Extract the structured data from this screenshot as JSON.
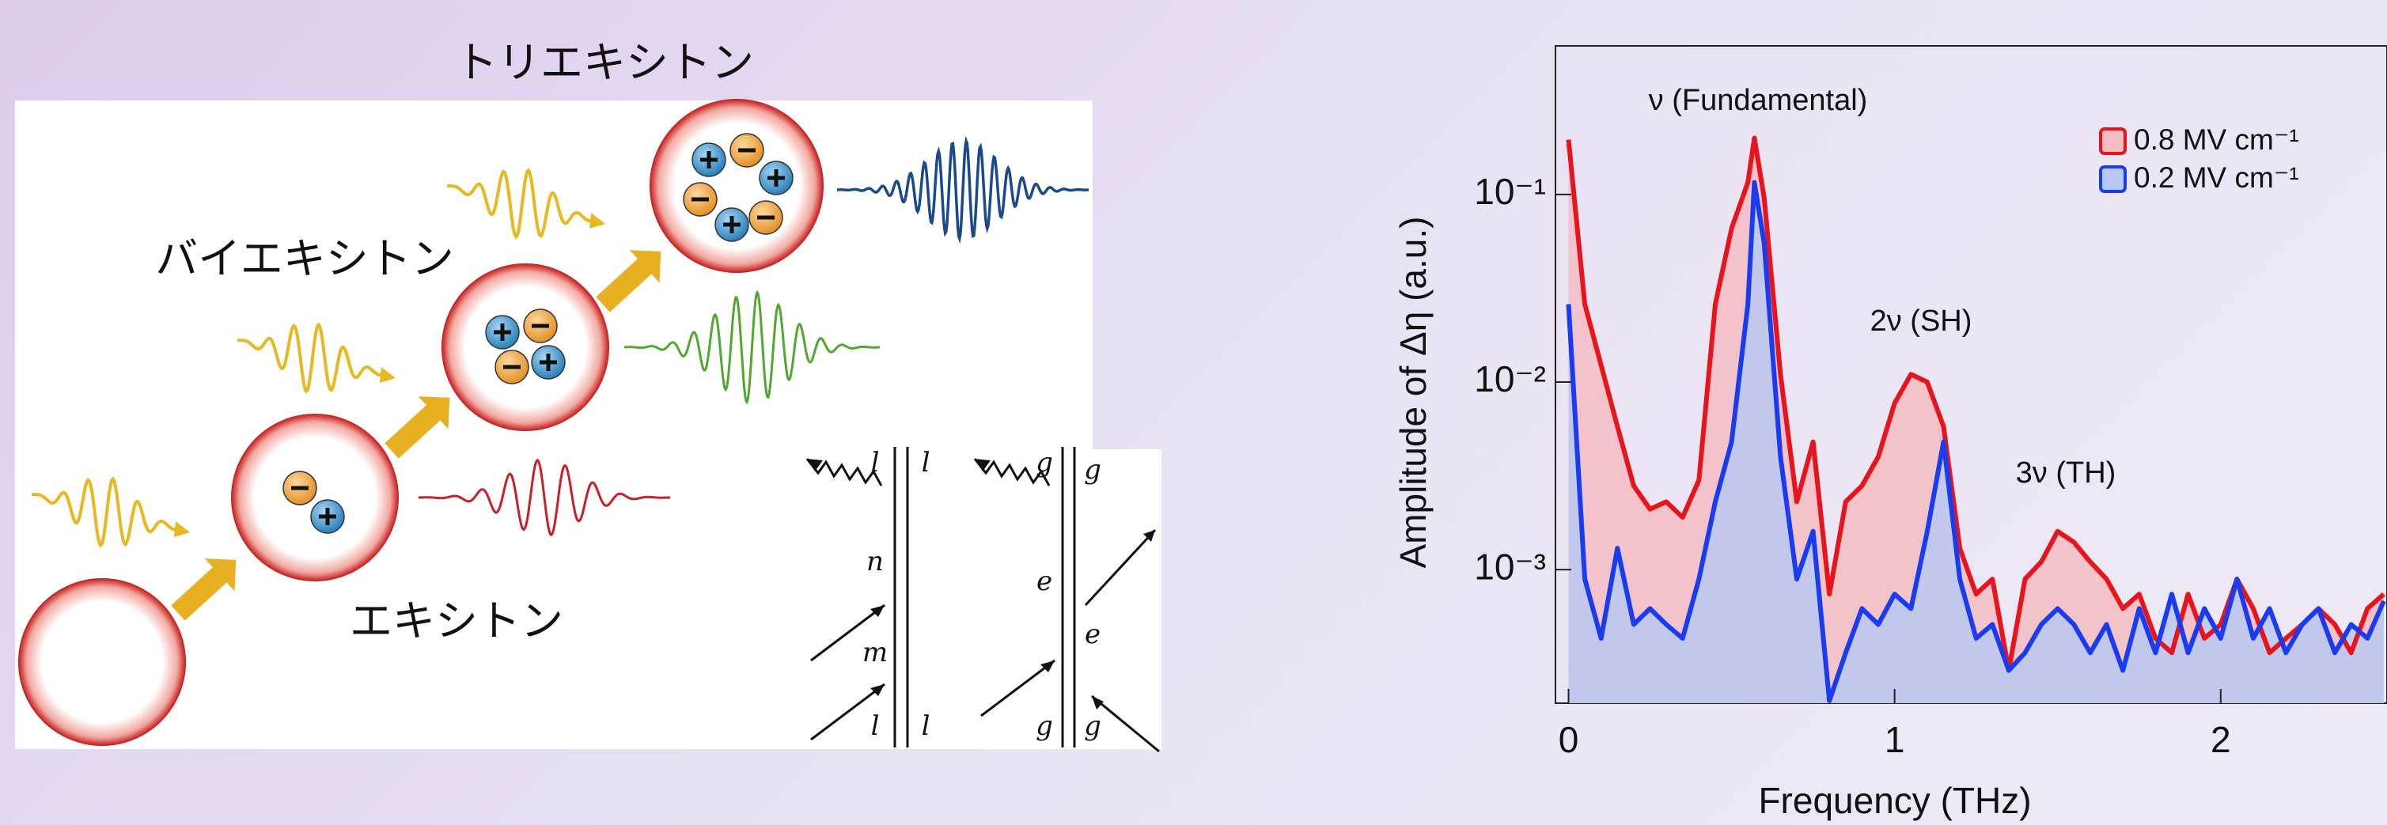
{
  "diagram": {
    "labels": [
      "トリエキシトン",
      "バイエキシトン",
      "エキシトン"
    ],
    "left_letters": [
      "l",
      "l",
      "n",
      "m",
      "l",
      "l"
    ],
    "right_letters": [
      "g",
      "g",
      "e",
      "e",
      "g",
      "g"
    ]
  },
  "chart_data": {
    "type": "area",
    "ylog": true,
    "xlabel": "Frequency (THz)",
    "ylabel": "Amplitude of Δη (a.u.)",
    "annotations": [
      "ν (Fundamental)",
      "2ν (SH)",
      "3ν (TH)"
    ],
    "xlim": [
      -0.04,
      2.51
    ],
    "xticks": [
      0,
      1,
      2
    ],
    "ylim": [
      0.000194,
      0.62
    ],
    "yticks": [
      {
        "value": 0.1,
        "label": "10⁻¹"
      },
      {
        "value": 0.01,
        "label": "10⁻²"
      },
      {
        "value": 0.001,
        "label": "10⁻³"
      }
    ],
    "legend": "top-right",
    "x": [
      0,
      0.05,
      0.1,
      0.15,
      0.2,
      0.25,
      0.3,
      0.35,
      0.4,
      0.45,
      0.5,
      0.55,
      0.57,
      0.6,
      0.65,
      0.7,
      0.75,
      0.8,
      0.85,
      0.9,
      0.95,
      1.0,
      1.05,
      1.1,
      1.15,
      1.2,
      1.25,
      1.3,
      1.35,
      1.4,
      1.45,
      1.5,
      1.55,
      1.6,
      1.65,
      1.7,
      1.75,
      1.8,
      1.85,
      1.9,
      1.95,
      2.0,
      2.05,
      2.1,
      2.15,
      2.2,
      2.25,
      2.3,
      2.35,
      2.4,
      2.45,
      2.5
    ],
    "series": [
      {
        "name": "0.8 MV cm⁻¹",
        "color": "#e8141c",
        "fill": "#f5bcc2",
        "values": [
          0.196,
          0.026,
          0.0123,
          0.0058,
          0.0028,
          0.0021,
          0.0023,
          0.0019,
          0.003,
          0.026,
          0.066,
          0.116,
          0.2,
          0.096,
          0.011,
          0.0023,
          0.0048,
          0.00074,
          0.0023,
          0.0028,
          0.004,
          0.0077,
          0.011,
          0.01,
          0.0058,
          0.0013,
          0.00074,
          0.00089,
          0.00029,
          0.00089,
          0.0011,
          0.0016,
          0.0014,
          0.0011,
          0.00089,
          0.00062,
          0.00074,
          0.00043,
          0.00036,
          0.00074,
          0.00043,
          0.00051,
          0.00089,
          0.00062,
          0.00036,
          0.00043,
          0.00051,
          0.00062,
          0.00051,
          0.00036,
          0.00062,
          0.00074
        ]
      },
      {
        "name": "0.2 MV cm⁻¹",
        "color": "#1a3cf0",
        "fill": "#b8c8f2",
        "values": [
          0.026,
          0.00089,
          0.00043,
          0.0013,
          0.00051,
          0.00062,
          0.00051,
          0.00043,
          0.00089,
          0.0023,
          0.0048,
          0.026,
          0.116,
          0.055,
          0.004,
          0.00089,
          0.0016,
          0.0002,
          0.00036,
          0.00062,
          0.00051,
          0.00074,
          0.00062,
          0.0016,
          0.0048,
          0.00089,
          0.00043,
          0.00051,
          0.00029,
          0.00036,
          0.00051,
          0.00062,
          0.00051,
          0.00036,
          0.00051,
          0.00029,
          0.00062,
          0.00036,
          0.00074,
          0.00036,
          0.00062,
          0.00043,
          0.00089,
          0.00043,
          0.00062,
          0.00036,
          0.00051,
          0.00062,
          0.00036,
          0.00051,
          0.00043,
          0.00068
        ]
      }
    ]
  }
}
